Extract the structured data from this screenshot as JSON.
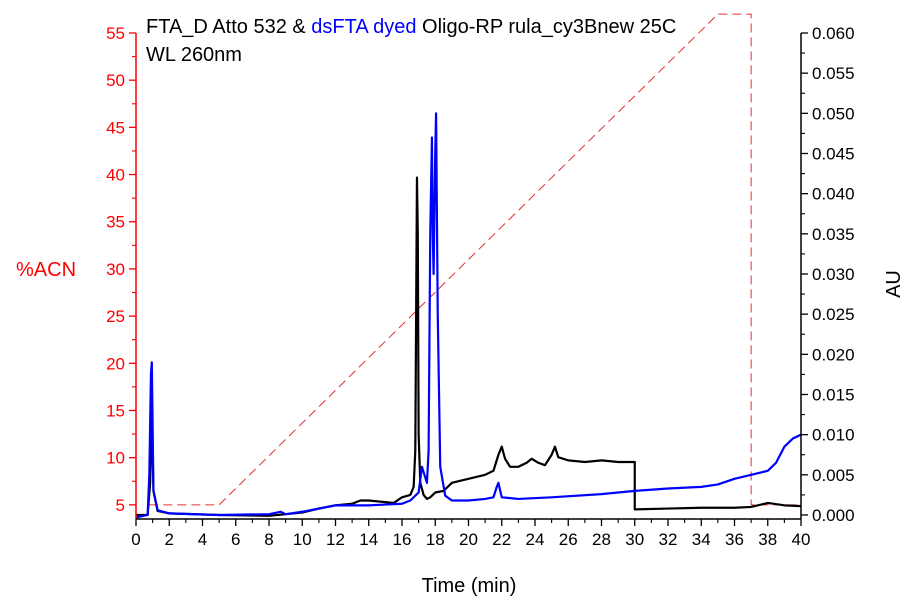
{
  "chart_data": {
    "type": "line",
    "title_parts": [
      {
        "text": "FTA_D Atto 532 & ",
        "color": "#000000"
      },
      {
        "text": "dsFTA dyed",
        "color": "#0000ff"
      },
      {
        "text": " Oligo-RP rula_cy3Bnew 25C",
        "color": "#000000"
      }
    ],
    "subtitle": "WL 260nm",
    "xlabel": "Time (min)",
    "ylabel_left": "%ACN",
    "ylabel_right": "AU",
    "xlim": [
      0,
      40
    ],
    "ylim_left": [
      3.5,
      55
    ],
    "ylim_right": [
      -0.0005,
      0.06
    ],
    "x_ticks": [
      "0",
      "2",
      "4",
      "6",
      "8",
      "10",
      "12",
      "14",
      "16",
      "18",
      "20",
      "22",
      "24",
      "26",
      "28",
      "30",
      "32",
      "34",
      "36",
      "38",
      "40"
    ],
    "y_left_ticks": [
      "5",
      "10",
      "15",
      "20",
      "25",
      "30",
      "35",
      "40",
      "45",
      "50",
      "55"
    ],
    "y_right_ticks": [
      "0.000",
      "0.005",
      "0.010",
      "0.015",
      "0.020",
      "0.025",
      "0.030",
      "0.035",
      "0.040",
      "0.045",
      "0.050",
      "0.055",
      "0.060"
    ],
    "grid": false,
    "colors": {
      "left_axis": "#ff0000",
      "right_axis": "#000000",
      "gradient": "#e03030",
      "fta_d": "#000000",
      "dsfta": "#0000ff"
    },
    "series": [
      {
        "axis": "left",
        "style": "dashed",
        "color": "#e03030",
        "points": [
          [
            0.8,
            5
          ],
          [
            5,
            5
          ],
          [
            35,
            57
          ],
          [
            37,
            57
          ],
          [
            37,
            5
          ],
          [
            40,
            5
          ]
        ]
      },
      {
        "axis": "right",
        "style": "solid",
        "color": "#000000",
        "points": [
          [
            0,
            0
          ],
          [
            0.7,
            0
          ],
          [
            0.85,
            0.004
          ],
          [
            0.95,
            0.0125
          ],
          [
            1.05,
            0.003
          ],
          [
            1.3,
            0.0005
          ],
          [
            2,
            0.0002
          ],
          [
            5,
            0
          ],
          [
            8,
            -0.0001
          ],
          [
            9,
            0.0001
          ],
          [
            10,
            0.0003
          ],
          [
            11,
            0.0008
          ],
          [
            12,
            0.0012
          ],
          [
            13,
            0.0014
          ],
          [
            13.5,
            0.0018
          ],
          [
            14,
            0.0018
          ],
          [
            15,
            0.0016
          ],
          [
            15.5,
            0.0015
          ],
          [
            16,
            0.0022
          ],
          [
            16.5,
            0.0025
          ],
          [
            16.7,
            0.0035
          ],
          [
            16.8,
            0.008
          ],
          [
            16.85,
            0.025
          ],
          [
            16.9,
            0.042
          ],
          [
            16.95,
            0.035
          ],
          [
            17,
            0.01
          ],
          [
            17.1,
            0.004
          ],
          [
            17.3,
            0.0025
          ],
          [
            17.5,
            0.002
          ],
          [
            17.7,
            0.0022
          ],
          [
            18,
            0.0028
          ],
          [
            18.5,
            0.003
          ],
          [
            19,
            0.004
          ],
          [
            20,
            0.0045
          ],
          [
            21,
            0.005
          ],
          [
            21.5,
            0.0055
          ],
          [
            21.8,
            0.0075
          ],
          [
            22,
            0.0085
          ],
          [
            22.2,
            0.007
          ],
          [
            22.5,
            0.006
          ],
          [
            23,
            0.006
          ],
          [
            23.5,
            0.0065
          ],
          [
            23.8,
            0.007
          ],
          [
            24.2,
            0.0065
          ],
          [
            24.6,
            0.0062
          ],
          [
            25,
            0.0075
          ],
          [
            25.2,
            0.0085
          ],
          [
            25.4,
            0.0072
          ],
          [
            26,
            0.0068
          ],
          [
            27,
            0.0066
          ],
          [
            28,
            0.0068
          ],
          [
            29,
            0.0066
          ],
          [
            30,
            0.0066
          ],
          [
            30,
            0.0007
          ],
          [
            32,
            0.0008
          ],
          [
            34,
            0.0009
          ],
          [
            36,
            0.0009
          ],
          [
            37,
            0.001
          ],
          [
            38,
            0.0015
          ],
          [
            39,
            0.0012
          ],
          [
            40,
            0.0011
          ]
        ]
      },
      {
        "axis": "right",
        "style": "solid",
        "color": "#0000ff",
        "points": [
          [
            0,
            -0.0003
          ],
          [
            0.7,
            0
          ],
          [
            0.8,
            0.005
          ],
          [
            0.9,
            0.0175
          ],
          [
            0.95,
            0.019
          ],
          [
            1.05,
            0.003
          ],
          [
            1.3,
            0.0006
          ],
          [
            2,
            0.0002
          ],
          [
            5,
            0
          ],
          [
            8,
            0.0001
          ],
          [
            8.7,
            0.0004
          ],
          [
            9,
            0.0001
          ],
          [
            10,
            0.0004
          ],
          [
            11,
            0.0008
          ],
          [
            12,
            0.0012
          ],
          [
            13,
            0.0012
          ],
          [
            14,
            0.0012
          ],
          [
            15,
            0.0013
          ],
          [
            16,
            0.0014
          ],
          [
            16.5,
            0.0018
          ],
          [
            17,
            0.0028
          ],
          [
            17.2,
            0.006
          ],
          [
            17.35,
            0.005
          ],
          [
            17.5,
            0.004
          ],
          [
            17.6,
            0.008
          ],
          [
            17.7,
            0.035
          ],
          [
            17.8,
            0.047
          ],
          [
            17.85,
            0.035
          ],
          [
            17.9,
            0.03
          ],
          [
            18,
            0.045
          ],
          [
            18.05,
            0.05
          ],
          [
            18.15,
            0.025
          ],
          [
            18.3,
            0.006
          ],
          [
            18.6,
            0.0024
          ],
          [
            19,
            0.0018
          ],
          [
            20,
            0.0018
          ],
          [
            21,
            0.002
          ],
          [
            21.5,
            0.0022
          ],
          [
            21.7,
            0.0035
          ],
          [
            21.8,
            0.004
          ],
          [
            22,
            0.0022
          ],
          [
            23,
            0.002
          ],
          [
            25,
            0.0022
          ],
          [
            28,
            0.0026
          ],
          [
            30,
            0.003
          ],
          [
            32,
            0.0033
          ],
          [
            34,
            0.0035
          ],
          [
            35,
            0.0038
          ],
          [
            36,
            0.0045
          ],
          [
            37,
            0.005
          ],
          [
            38,
            0.0055
          ],
          [
            38.5,
            0.0065
          ],
          [
            39,
            0.0085
          ],
          [
            39.5,
            0.0095
          ],
          [
            40,
            0.01
          ]
        ]
      }
    ]
  }
}
